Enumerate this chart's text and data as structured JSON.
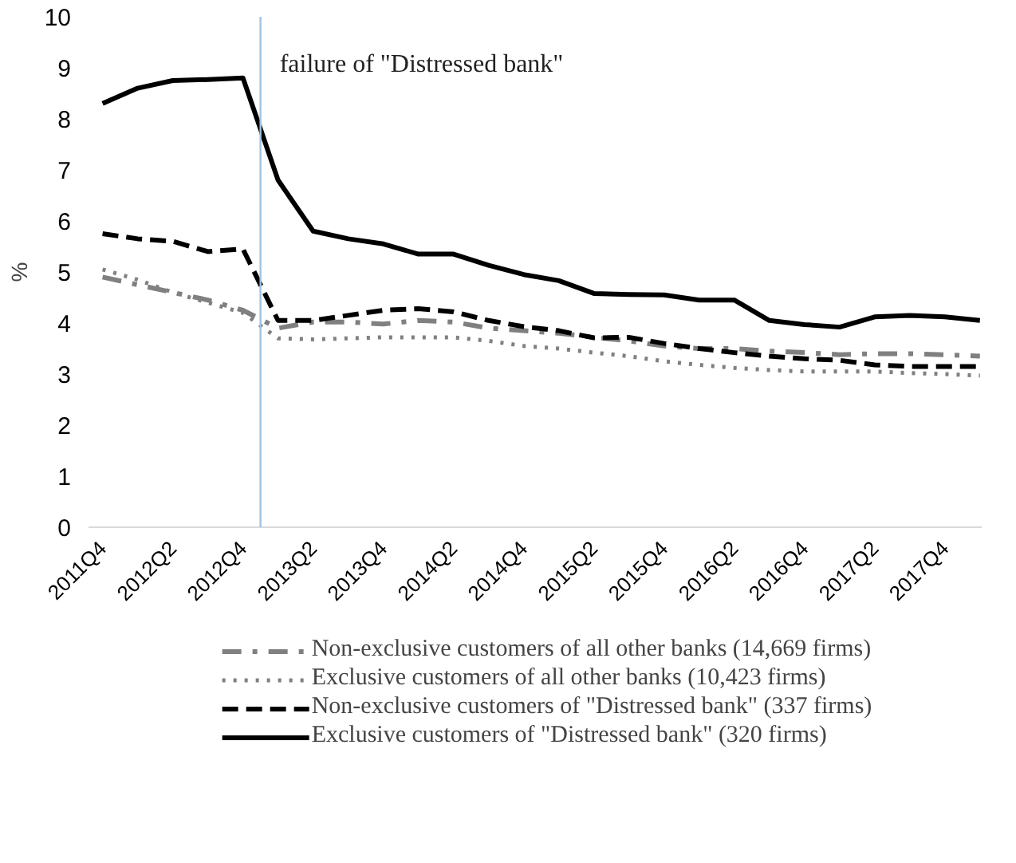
{
  "chart_data": {
    "type": "line",
    "ylabel": "%",
    "categories": [
      "2011Q4",
      null,
      "2012Q2",
      null,
      "2012Q4",
      null,
      "2013Q2",
      null,
      "2013Q4",
      null,
      "2014Q2",
      null,
      "2014Q4",
      null,
      "2015Q2",
      null,
      "2015Q4",
      null,
      "2016Q2",
      null,
      "2016Q4",
      null,
      "2017Q2",
      null,
      "2017Q4",
      null
    ],
    "ylim": [
      0,
      10
    ],
    "yticks": [
      0,
      1,
      2,
      3,
      4,
      5,
      6,
      7,
      8,
      9,
      10
    ],
    "grid": false,
    "legend": "bottom",
    "marker": "none",
    "series": [
      {
        "name": "Non-exclusive customers of all other banks (14,669 firms)",
        "color": "#808080",
        "line_style": "dashdot",
        "values": [
          4.9,
          4.75,
          4.6,
          4.45,
          4.25,
          3.9,
          4.02,
          4.02,
          3.98,
          4.05,
          4.02,
          3.9,
          3.85,
          3.8,
          3.72,
          3.65,
          3.55,
          3.5,
          3.5,
          3.45,
          3.42,
          3.38,
          3.4,
          3.4,
          3.38,
          3.35
        ]
      },
      {
        "name": "Exclusive customers of all other banks (10,423 firms)",
        "color": "#808080",
        "line_style": "dotted",
        "values": [
          5.05,
          4.85,
          4.6,
          4.4,
          4.2,
          3.7,
          3.68,
          3.7,
          3.72,
          3.72,
          3.72,
          3.65,
          3.55,
          3.5,
          3.42,
          3.35,
          3.25,
          3.18,
          3.12,
          3.08,
          3.05,
          3.05,
          3.05,
          3.02,
          3.0,
          2.97
        ]
      },
      {
        "name": "Non-exclusive customers of \"Distressed bank\" (337 firms)",
        "color": "#000000",
        "line_style": "dashed",
        "values": [
          5.75,
          5.65,
          5.6,
          5.4,
          5.45,
          4.05,
          4.05,
          4.15,
          4.25,
          4.28,
          4.22,
          4.05,
          3.93,
          3.85,
          3.71,
          3.72,
          3.6,
          3.5,
          3.42,
          3.35,
          3.3,
          3.27,
          3.18,
          3.15,
          3.15,
          3.15
        ]
      },
      {
        "name": "Exclusive customers of \"Distressed bank\" (320 firms)",
        "color": "#000000",
        "line_style": "solid",
        "values": [
          8.3,
          8.6,
          8.75,
          8.77,
          8.8,
          6.8,
          5.8,
          5.65,
          5.55,
          5.35,
          5.35,
          5.13,
          4.95,
          4.83,
          4.58,
          4.56,
          4.55,
          4.45,
          4.45,
          4.05,
          3.97,
          3.92,
          4.12,
          4.15,
          4.12,
          4.05
        ]
      }
    ],
    "annotations": [
      "failure of \"Distressed bank\""
    ]
  }
}
